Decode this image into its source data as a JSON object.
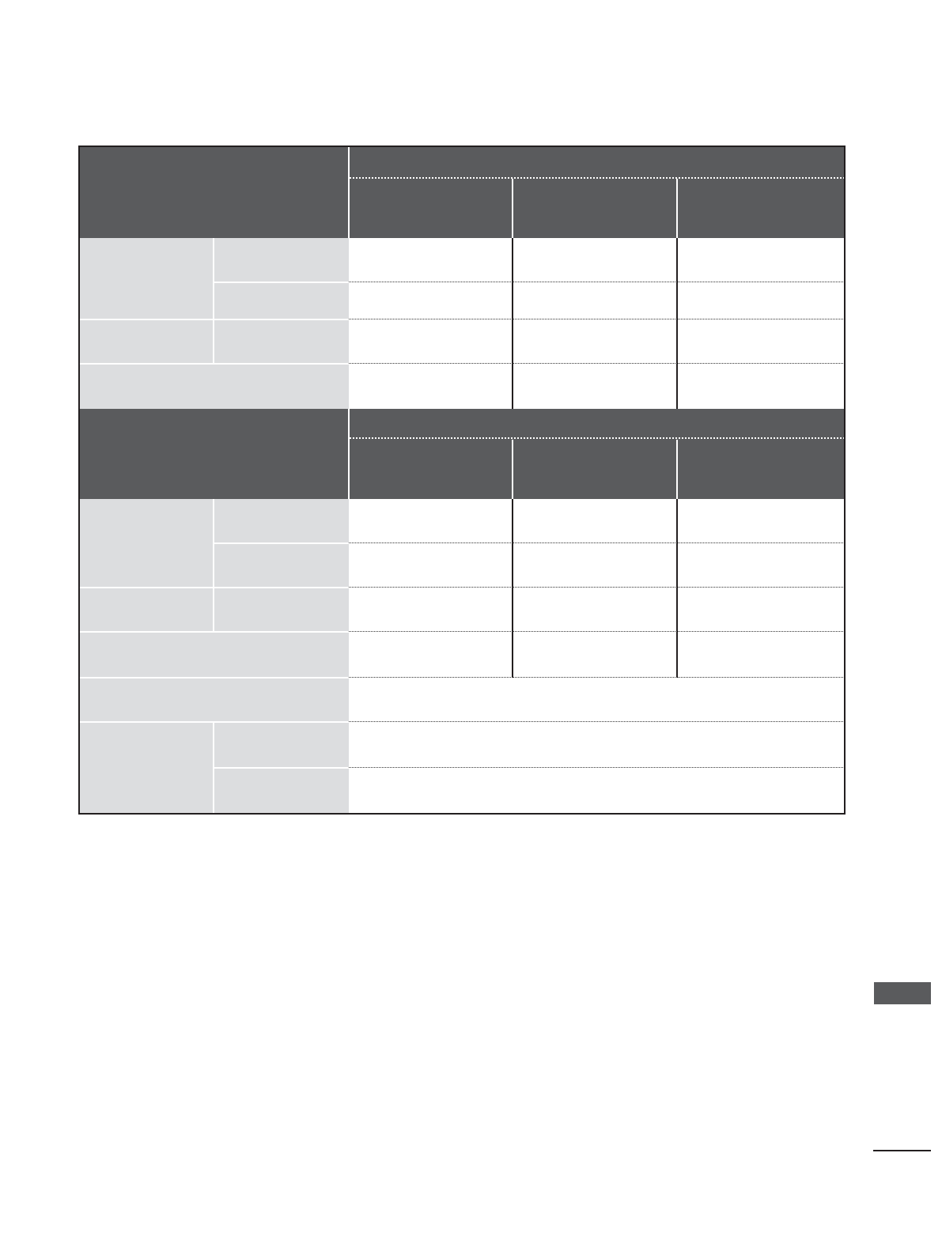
{
  "colors": {
    "header_fill": "#5a5b5d",
    "label_fill": "#dcdddf",
    "border": "#231f20"
  },
  "table": {
    "sections": 2,
    "value_columns": 3
  }
}
